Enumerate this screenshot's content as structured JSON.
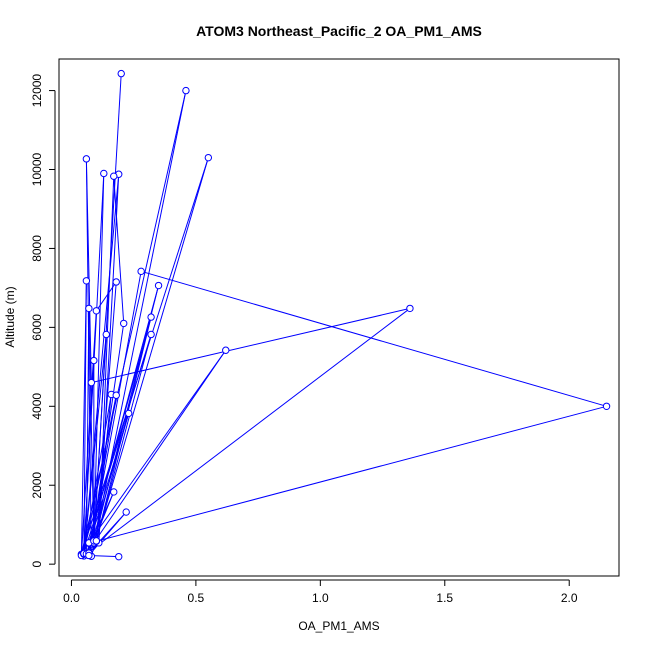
{
  "chart_data": {
    "type": "line",
    "title": "ATOM3 Northeast_Pacific_2 OA_PM1_AMS",
    "xlabel": "OA_PM1_AMS",
    "ylabel": "Altitude (m)",
    "xlim": [
      -0.05,
      2.2
    ],
    "ylim": [
      -300,
      12800
    ],
    "xticks": [
      0.0,
      0.5,
      1.0,
      1.5,
      2.0
    ],
    "xtick_labels": [
      "0.0",
      "0.5",
      "1.0",
      "1.5",
      "2.0"
    ],
    "yticks": [
      0,
      2000,
      4000,
      6000,
      8000,
      10000,
      12000
    ],
    "ytick_labels": [
      "0",
      "2000",
      "4000",
      "6000",
      "8000",
      "10000",
      "12000"
    ],
    "grid": false,
    "series": [
      {
        "color": "#0000ff",
        "marker": "open-circle",
        "points": [
          [
            0.2,
            12430
          ],
          [
            0.09,
            500
          ],
          [
            0.46,
            12000
          ],
          [
            0.04,
            250
          ],
          [
            0.55,
            10300
          ],
          [
            0.08,
            200
          ],
          [
            0.06,
            10270
          ],
          [
            0.08,
            4600
          ],
          [
            1.36,
            6480
          ],
          [
            0.06,
            260
          ],
          [
            0.07,
            6480
          ],
          [
            0.09,
            520
          ],
          [
            0.13,
            9900
          ],
          [
            0.05,
            210
          ],
          [
            0.19,
            9880
          ],
          [
            0.11,
            540
          ],
          [
            0.17,
            9830
          ],
          [
            0.21,
            6100
          ],
          [
            0.08,
            520
          ],
          [
            0.28,
            7420
          ],
          [
            2.15,
            4000
          ],
          [
            0.07,
            530
          ],
          [
            0.35,
            7060
          ],
          [
            0.09,
            540
          ],
          [
            0.62,
            5420
          ],
          [
            0.07,
            540
          ],
          [
            0.32,
            6260
          ],
          [
            0.1,
            580
          ],
          [
            0.18,
            7150
          ],
          [
            0.1,
            6420
          ],
          [
            0.04,
            220
          ],
          [
            0.06,
            7180
          ],
          [
            0.05,
            250
          ],
          [
            0.14,
            5820
          ],
          [
            0.09,
            590
          ],
          [
            0.09,
            5160
          ],
          [
            0.05,
            260
          ],
          [
            0.32,
            5820
          ],
          [
            0.1,
            590
          ],
          [
            0.16,
            4300
          ],
          [
            0.05,
            270
          ],
          [
            0.18,
            4280
          ],
          [
            0.07,
            260
          ],
          [
            0.23,
            3820
          ],
          [
            0.06,
            260
          ],
          [
            0.17,
            1830
          ],
          [
            0.07,
            280
          ],
          [
            0.22,
            1320
          ],
          [
            0.07,
            220
          ],
          [
            0.19,
            190
          ]
        ]
      }
    ]
  }
}
